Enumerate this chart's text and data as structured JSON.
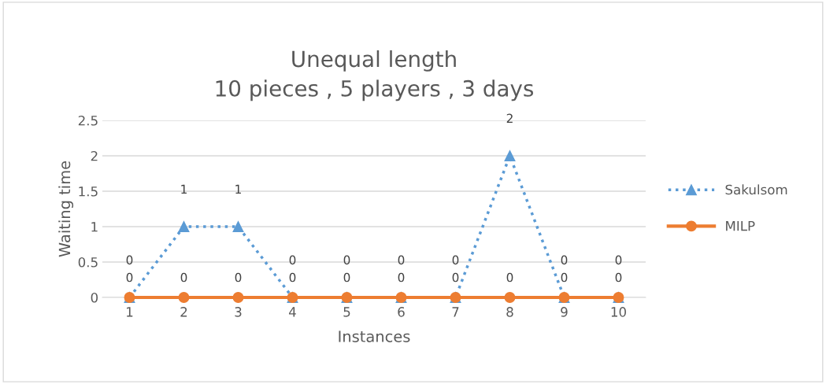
{
  "chart_data": {
    "type": "line",
    "title": "Unequal length\n10 pieces , 5 players , 3 days",
    "xlabel": "Instances",
    "ylabel": "Waiting time",
    "categories": [
      "1",
      "2",
      "3",
      "4",
      "5",
      "6",
      "7",
      "8",
      "9",
      "10"
    ],
    "series": [
      {
        "name": "Sakulsom",
        "color": "#5b9bd5",
        "values": [
          0,
          1,
          1,
          0,
          0,
          0,
          0,
          2,
          0,
          0
        ],
        "marker": "triangle",
        "line_style": "dotted"
      },
      {
        "name": "MILP",
        "color": "#ed7d31",
        "values": [
          0,
          0,
          0,
          0,
          0,
          0,
          0,
          0,
          0,
          0
        ],
        "marker": "circle",
        "line_style": "solid"
      }
    ],
    "ylim": [
      0,
      2.5
    ],
    "yticks": [
      0,
      0.5,
      1,
      1.5,
      2,
      2.5
    ],
    "grid": "y",
    "legend": "right",
    "data_labels": true
  }
}
